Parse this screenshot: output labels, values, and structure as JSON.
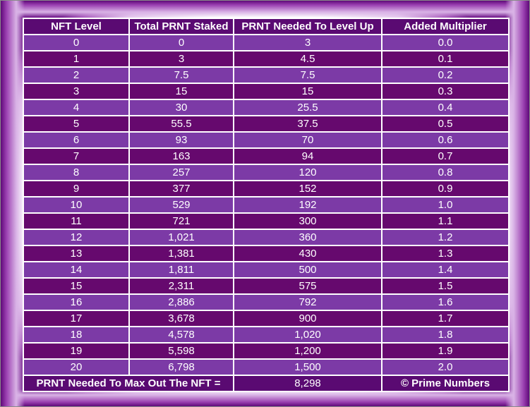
{
  "colors": {
    "header_bg": "#5a0a72",
    "row_light": "#7c3aa6",
    "row_dark": "#66096e",
    "text": "#ffffff",
    "frame_glow": "#6a0e84"
  },
  "table": {
    "headers": [
      "NFT Level",
      "Total PRNT Staked",
      "PRNT Needed To Level Up",
      "Added Multiplier"
    ],
    "rows": [
      [
        "0",
        "0",
        "3",
        "0.0"
      ],
      [
        "1",
        "3",
        "4.5",
        "0.1"
      ],
      [
        "2",
        "7.5",
        "7.5",
        "0.2"
      ],
      [
        "3",
        "15",
        "15",
        "0.3"
      ],
      [
        "4",
        "30",
        "25.5",
        "0.4"
      ],
      [
        "5",
        "55.5",
        "37.5",
        "0.5"
      ],
      [
        "6",
        "93",
        "70",
        "0.6"
      ],
      [
        "7",
        "163",
        "94",
        "0.7"
      ],
      [
        "8",
        "257",
        "120",
        "0.8"
      ],
      [
        "9",
        "377",
        "152",
        "0.9"
      ],
      [
        "10",
        "529",
        "192",
        "1.0"
      ],
      [
        "11",
        "721",
        "300",
        "1.1"
      ],
      [
        "12",
        "1,021",
        "360",
        "1.2"
      ],
      [
        "13",
        "1,381",
        "430",
        "1.3"
      ],
      [
        "14",
        "1,811",
        "500",
        "1.4"
      ],
      [
        "15",
        "2,311",
        "575",
        "1.5"
      ],
      [
        "16",
        "2,886",
        "792",
        "1.6"
      ],
      [
        "17",
        "3,678",
        "900",
        "1.7"
      ],
      [
        "18",
        "4,578",
        "1,020",
        "1.8"
      ],
      [
        "19",
        "5,598",
        "1,200",
        "1.9"
      ],
      [
        "20",
        "6,798",
        "1,500",
        "2.0"
      ]
    ],
    "summary": {
      "label": "PRNT Needed To Max Out The NFT =",
      "value": "8,298",
      "credit": "© Prime Numbers"
    }
  }
}
